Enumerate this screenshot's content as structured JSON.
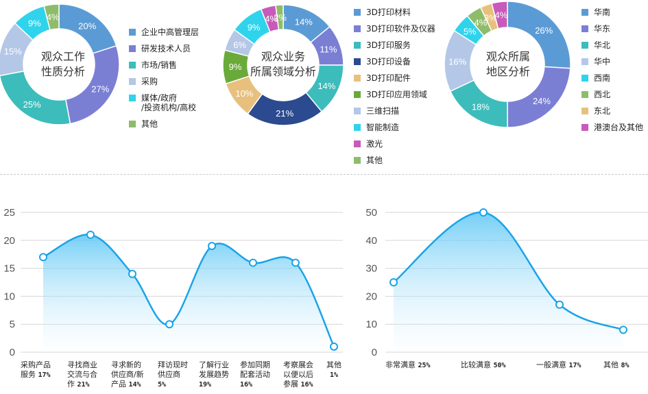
{
  "donuts": [
    {
      "title": "观众工作\n性质分析",
      "legend": [
        "企业中高管理层",
        "研发技术人员",
        "市场/销售",
        "采购",
        "媒体/政府\n/投资机构/高校",
        "其他"
      ]
    },
    {
      "title": "观众业务\n所属领域分析",
      "legend": [
        "3D打印材料",
        "3D打印软件及仪器",
        "3D打印服务",
        "3D打印设备",
        "3D打印配件",
        "3D打印应用领域",
        "三维扫描",
        "智能制造",
        "激光",
        "其他"
      ]
    },
    {
      "title": "观众所属\n地区分析",
      "legend": [
        "华南",
        "华东",
        "华北",
        "华中",
        "西南",
        "西北",
        "东北",
        "港澳台及其他"
      ]
    }
  ],
  "line_charts": [
    {
      "categories": [
        {
          "name": "采购产品\n服务",
          "pct": "17%"
        },
        {
          "name": "寻找商业\n交流与合\n作",
          "pct": "21%"
        },
        {
          "name": "寻求新的\n供应商/新\n产品",
          "pct": "14%"
        },
        {
          "name": "拜访现时\n供应商",
          "pct": "5%"
        },
        {
          "name": "了解行业\n发展趋势",
          "pct": "19%"
        },
        {
          "name": "参加同期\n配套活动",
          "pct": "16%"
        },
        {
          "name": "考察展会\n以便以后\n参展",
          "pct": "16%"
        },
        {
          "name": "其他",
          "pct": "1%"
        }
      ]
    },
    {
      "categories": [
        {
          "name": "非常满意",
          "pct": "25%"
        },
        {
          "name": "比较满意",
          "pct": "50%"
        },
        {
          "name": "一般满意",
          "pct": "17%"
        },
        {
          "name": "其他",
          "pct": "8%"
        }
      ]
    }
  ],
  "chart_data": [
    {
      "type": "pie",
      "donut": true,
      "title": "观众工作\n性质分析",
      "categories": [
        "企业中高管理层",
        "研发技术人员",
        "市场/销售",
        "采购",
        "媒体/政府/投资机构/高校",
        "其他"
      ],
      "values": [
        20,
        27,
        25,
        15,
        9,
        4
      ],
      "colors": [
        "#5b9bd5",
        "#7b7fd4",
        "#3dbcbc",
        "#b4c7e7",
        "#2fd3ec",
        "#8fbc6a"
      ]
    },
    {
      "type": "pie",
      "donut": true,
      "title": "观众业务\n所属领域分析",
      "categories": [
        "3D打印材料",
        "3D打印软件及仪器",
        "3D打印服务",
        "3D打印设备",
        "3D打印配件",
        "3D打印应用领域",
        "三维扫描",
        "智能制造",
        "激光",
        "其他"
      ],
      "values": [
        14,
        11,
        14,
        21,
        10,
        9,
        6,
        9,
        4,
        2
      ],
      "colors": [
        "#5b9bd5",
        "#7b7fd4",
        "#3dbcbc",
        "#2b4a8f",
        "#e8c07d",
        "#6aaa3a",
        "#b4c7e7",
        "#2fd3ec",
        "#c85aba",
        "#8fbc6a"
      ]
    },
    {
      "type": "pie",
      "donut": true,
      "title": "观众所属\n地区分析",
      "categories": [
        "华南",
        "华东",
        "华北",
        "华中",
        "西南",
        "西北",
        "东北",
        "港澳台及其他"
      ],
      "values": [
        26,
        24,
        18,
        16,
        5,
        4,
        3,
        4
      ],
      "colors": [
        "#5b9bd5",
        "#7b7fd4",
        "#3dbcbc",
        "#b4c7e7",
        "#2fd3ec",
        "#8fbc6a",
        "#e8c07d",
        "#c85aba"
      ]
    },
    {
      "type": "area",
      "categories": [
        "采购产品服务",
        "寻找商业交流与合作",
        "寻求新的供应商/新产品",
        "拜访现时供应商",
        "了解行业发展趋势",
        "参加同期配套活动",
        "考察展会以便以后参展",
        "其他"
      ],
      "values": [
        17,
        21,
        14,
        5,
        19,
        16,
        16,
        1
      ],
      "ylim": [
        0,
        25
      ],
      "yticks": [
        0,
        5,
        10,
        15,
        20,
        25
      ],
      "grid": true,
      "color": "#1aa3e8"
    },
    {
      "type": "area",
      "categories": [
        "非常满意",
        "比较满意",
        "一般满意",
        "其他"
      ],
      "values": [
        25,
        50,
        17,
        8
      ],
      "ylim": [
        0,
        50
      ],
      "yticks": [
        0,
        10,
        20,
        30,
        40,
        50
      ],
      "grid": true,
      "color": "#1aa3e8"
    }
  ]
}
